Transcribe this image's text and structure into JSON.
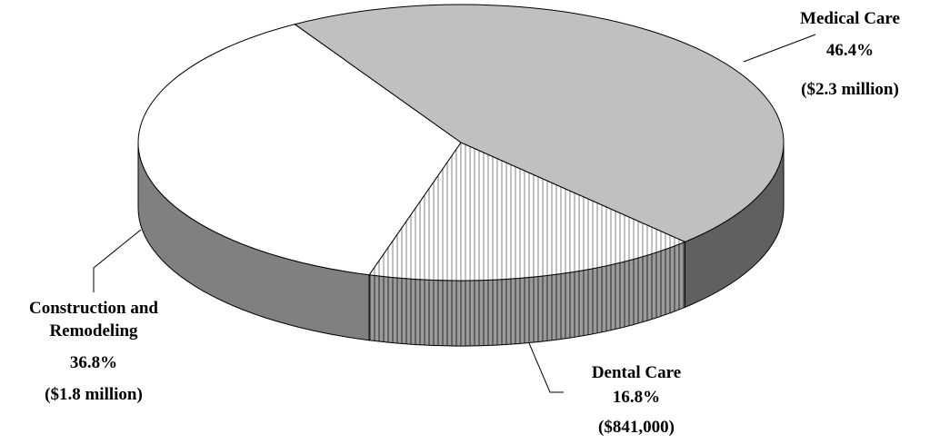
{
  "chart_data": {
    "type": "pie3d",
    "categories": [
      "Medical Care",
      "Dental Care",
      "Construction and Remodeling"
    ],
    "values": [
      46.4,
      16.8,
      36.8
    ],
    "value_labels": [
      "46.4%",
      "16.8%",
      "36.8%"
    ],
    "amounts": [
      "($2.3 million)",
      "($841,000)",
      "($1.8 million)"
    ],
    "colors": [
      "#c0c0c0",
      "#ffffff",
      "#ffffff"
    ],
    "side_colors": [
      "#606060",
      "#8a8a8a",
      "#808080"
    ],
    "hatch": [
      false,
      true,
      false
    ]
  }
}
